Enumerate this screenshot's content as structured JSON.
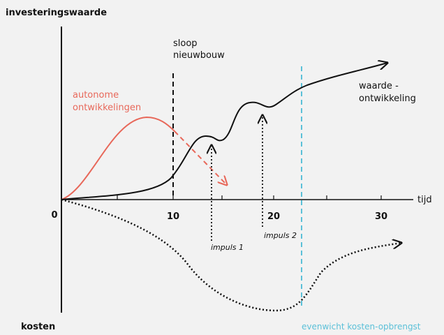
{
  "axes": {
    "y_top": "investeringswaarde",
    "y_bottom": "kosten",
    "x": "tijd",
    "x_tick_labels": [
      "0",
      "10",
      "20",
      "30"
    ]
  },
  "annotations": {
    "demolition": [
      "sloop",
      "nieuwbouw"
    ],
    "autonomous": [
      "autonome",
      "ontwikkelingen"
    ],
    "value_development": [
      "waarde -",
      "ontwikkeling"
    ],
    "impulse_1": "impuls 1",
    "impulse_2": "impuls 2",
    "equilibrium": "evenwicht kosten-opbrengst"
  }
}
